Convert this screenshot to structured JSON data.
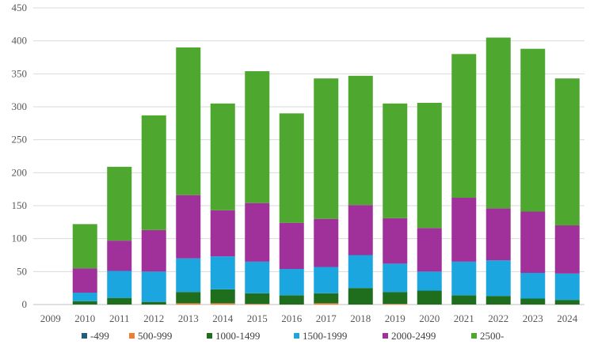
{
  "chart_data": {
    "type": "bar",
    "stacked": true,
    "categories": [
      "2009",
      "2010",
      "2011",
      "2012",
      "2013",
      "2014",
      "2015",
      "2016",
      "2017",
      "2018",
      "2019",
      "2020",
      "2021",
      "2022",
      "2023",
      "2024"
    ],
    "series": [
      {
        "name": "-499",
        "color": "#1f5f7a",
        "values": [
          0,
          0,
          0,
          0,
          0,
          0,
          0,
          0,
          0,
          0,
          0,
          0,
          0,
          0,
          0,
          0
        ]
      },
      {
        "name": "500-999",
        "color": "#ed7d31",
        "values": [
          0,
          0,
          0,
          0,
          2,
          2,
          1,
          0,
          2,
          0,
          1,
          0,
          0,
          0,
          0,
          0
        ]
      },
      {
        "name": "1000-1499",
        "color": "#1e6e1e",
        "values": [
          0,
          5,
          10,
          4,
          17,
          21,
          16,
          14,
          15,
          25,
          18,
          21,
          14,
          13,
          9,
          7
        ]
      },
      {
        "name": "1500-1999",
        "color": "#1ca6e0",
        "values": [
          0,
          13,
          41,
          46,
          51,
          50,
          48,
          40,
          40,
          50,
          43,
          29,
          51,
          54,
          39,
          40
        ]
      },
      {
        "name": "2000-2499",
        "color": "#a0309a",
        "values": [
          0,
          37,
          46,
          63,
          96,
          70,
          89,
          70,
          73,
          76,
          69,
          66,
          97,
          79,
          93,
          73
        ]
      },
      {
        "name": "2500-",
        "color": "#4ea72e",
        "values": [
          0,
          67,
          112,
          174,
          224,
          162,
          200,
          166,
          213,
          196,
          174,
          190,
          218,
          259,
          247,
          223
        ]
      }
    ],
    "ylim": [
      0,
      450
    ],
    "yticks": [
      0,
      50,
      100,
      150,
      200,
      250,
      300,
      350,
      400,
      450
    ],
    "grid": true,
    "legend_position": "bottom"
  }
}
